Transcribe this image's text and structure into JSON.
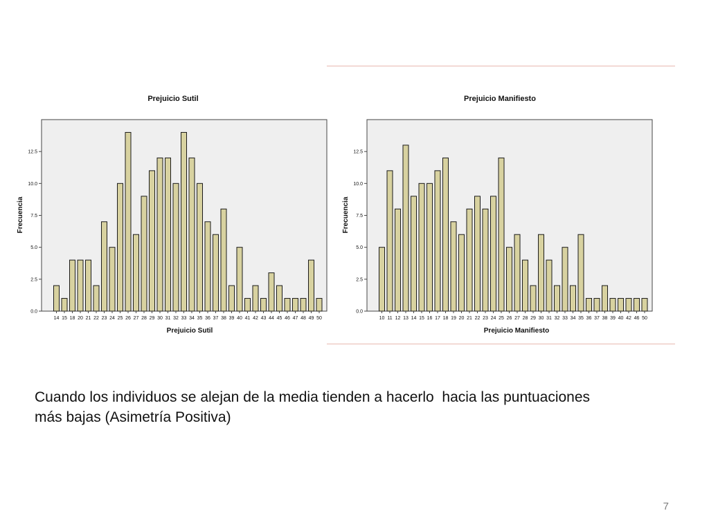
{
  "slide": {
    "caption_line1": "Cuando los individuos se alejan de la media tienden a hacerlo  hacia las puntuaciones",
    "caption_line2": "más bajas (Asimetría Positiva)",
    "page_number": "7"
  },
  "colors": {
    "bar_fill": "#d8d2a0",
    "bar_stroke": "#1a1a1a",
    "plot_background": "#efefef",
    "accent_line": "#e8b8b0"
  },
  "chart_data": [
    {
      "type": "bar",
      "title": "Prejuicio Sutil",
      "xlabel": "Prejuicio Sutil",
      "ylabel": "Frecuencia",
      "ylim": [
        0,
        15
      ],
      "yticks": [
        "0.0",
        "2.5",
        "5.0",
        "7.5",
        "10.0",
        "12.5"
      ],
      "yticks_values": [
        0,
        2.5,
        5,
        7.5,
        10,
        12.5
      ],
      "grid": false,
      "categories": [
        "14",
        "15",
        "18",
        "20",
        "21",
        "22",
        "23",
        "24",
        "25",
        "26",
        "27",
        "28",
        "29",
        "30",
        "31",
        "32",
        "33",
        "34",
        "35",
        "36",
        "37",
        "38",
        "39",
        "40",
        "41",
        "42",
        "43",
        "44",
        "45",
        "46",
        "47",
        "48",
        "49",
        "50"
      ],
      "values": [
        2,
        1,
        4,
        4,
        4,
        2,
        7,
        5,
        10,
        14,
        6,
        9,
        11,
        12,
        12,
        10,
        14,
        12,
        10,
        7,
        6,
        8,
        2,
        5,
        1,
        2,
        1,
        3,
        2,
        1,
        1,
        1,
        4,
        1
      ]
    },
    {
      "type": "bar",
      "title": "Prejuicio Manifiesto",
      "xlabel": "Prejuicio Manifiesto",
      "ylabel": "Frecuencia",
      "ylim": [
        0,
        15
      ],
      "yticks": [
        "0.0",
        "2.5",
        "5.0",
        "7.5",
        "10.0",
        "12.5"
      ],
      "yticks_values": [
        0,
        2.5,
        5,
        7.5,
        10,
        12.5
      ],
      "grid": false,
      "categories": [
        "10",
        "11",
        "12",
        "13",
        "14",
        "15",
        "16",
        "17",
        "18",
        "19",
        "20",
        "21",
        "22",
        "23",
        "24",
        "25",
        "26",
        "27",
        "28",
        "29",
        "30",
        "31",
        "32",
        "33",
        "34",
        "35",
        "36",
        "37",
        "38",
        "39",
        "40",
        "42",
        "46",
        "50"
      ],
      "values": [
        5,
        11,
        8,
        13,
        9,
        10,
        10,
        11,
        12,
        7,
        6,
        8,
        9,
        8,
        9,
        12,
        5,
        6,
        4,
        2,
        6,
        4,
        2,
        5,
        2,
        6,
        1,
        1,
        2,
        1,
        1,
        1,
        1,
        1
      ]
    }
  ]
}
